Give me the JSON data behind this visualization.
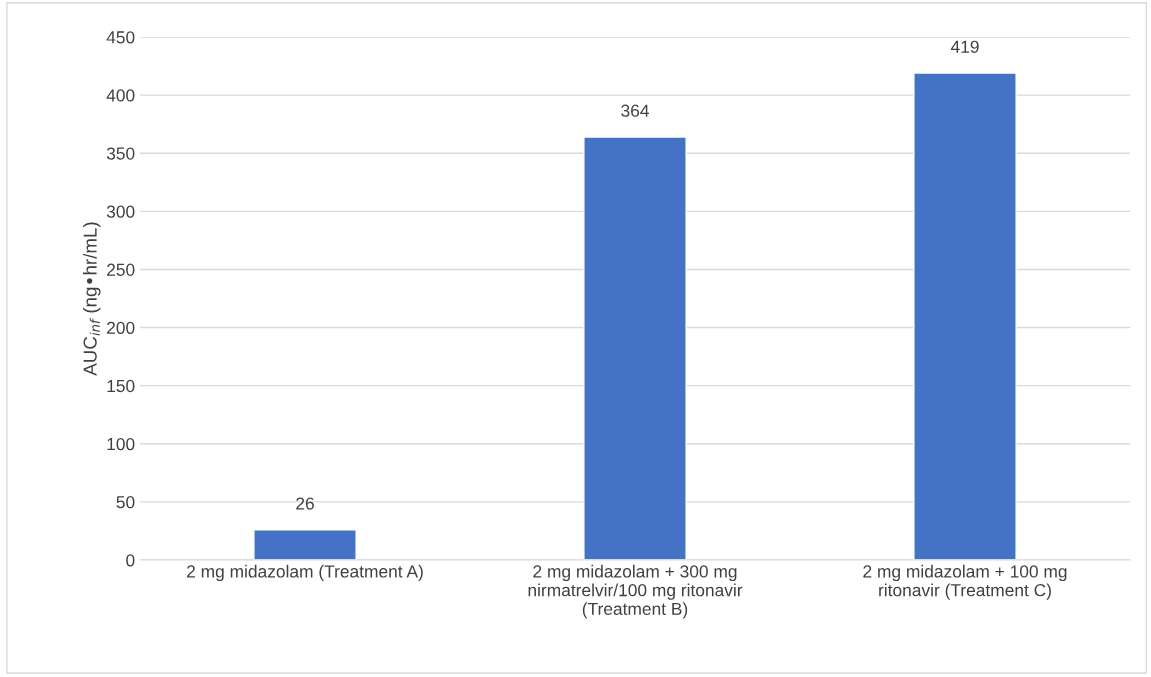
{
  "chart_data": {
    "type": "bar",
    "ylabel": "AUC$_{inf}$ (ng•hr/mL)",
    "categories": [
      "2 mg midazolam (Treatment A)",
      "2 mg midazolam + 300 mg nirmatrelvir/100 mg ritonavir (Treatment B)",
      "2 mg midazolam + 100 mg ritonavir (Treatment C)"
    ],
    "values": [
      26,
      364,
      419
    ],
    "color": "#4472c4",
    "ylim": [
      0,
      450
    ],
    "yticks": [
      0,
      50,
      100,
      150,
      200,
      250,
      300,
      350,
      400,
      450
    ],
    "grid": "y",
    "data_labels": true
  }
}
